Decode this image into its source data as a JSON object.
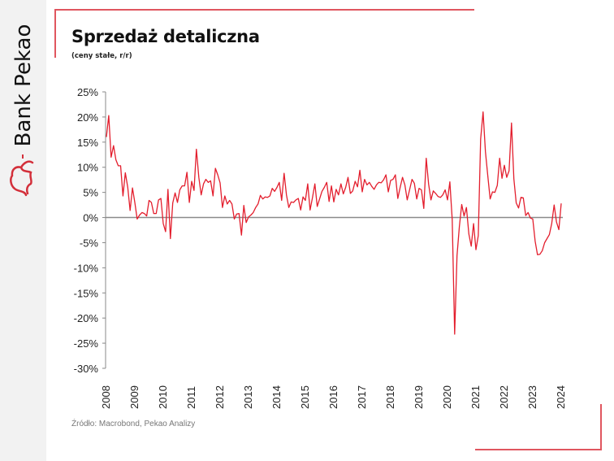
{
  "brand": {
    "name": "Bank Pekao",
    "accent": "#d32f3a"
  },
  "header": {
    "title": "Sprzedaż detaliczna",
    "subtitle": "(ceny stałe, r/r)"
  },
  "footer": {
    "source": "Źródło: Macrobond, Pekao Analizy"
  },
  "chart_data": {
    "type": "line",
    "title": "Sprzedaż detaliczna",
    "subtitle": "(ceny stałe, r/r)",
    "xlabel": "",
    "ylabel": "",
    "ylim": [
      -30,
      25
    ],
    "yticks": [
      "25%",
      "20%",
      "15%",
      "10%",
      "5%",
      "0%",
      "-5%",
      "-10%",
      "-15%",
      "-20%",
      "-25%",
      "-30%"
    ],
    "ytick_values": [
      25,
      20,
      15,
      10,
      5,
      0,
      -5,
      -10,
      -15,
      -20,
      -25,
      -30
    ],
    "xticks": [
      "2008",
      "2009",
      "2010",
      "2011",
      "2012",
      "2013",
      "2014",
      "2015",
      "2016",
      "2017",
      "2018",
      "2019",
      "2020",
      "2021",
      "2022",
      "2023",
      "2024"
    ],
    "x_start": "2008-01",
    "x_frequency": "monthly",
    "grid": false,
    "zero_line": true,
    "series": [
      {
        "color": "#e31e2d",
        "values": [
          16,
          20.3,
          12,
          14.3,
          11.5,
          10.3,
          10.3,
          4.3,
          8.9,
          6,
          1.4,
          5.9,
          3,
          -0.3,
          0.5,
          1,
          0.8,
          0.3,
          3.4,
          3,
          0.8,
          0.8,
          3.5,
          3.8,
          -1.2,
          -2.8,
          5.6,
          -4.2,
          2.9,
          4.9,
          3,
          5.5,
          6.3,
          6.3,
          9,
          3,
          7.2,
          5.4,
          13.6,
          8,
          4.5,
          6.7,
          7.6,
          7,
          7.3,
          4.3,
          9.8,
          8.5,
          6.9,
          2,
          4.3,
          2.7,
          3.4,
          2.7,
          -0.3,
          0.7,
          0.8,
          -3.5,
          2.4,
          -1,
          0.1,
          0.5,
          1,
          2,
          2.7,
          4.4,
          3.7,
          4.1,
          4,
          4.3,
          5.8,
          5.2,
          6,
          7,
          3.4,
          8.8,
          4.5,
          2,
          3.1,
          3,
          3.5,
          3.8,
          1.5,
          4.1,
          3.4,
          6.7,
          1.5,
          4,
          6.7,
          2.2,
          3.7,
          5.2,
          6,
          7,
          3.2,
          6.3,
          3.1,
          5.6,
          4.5,
          6.7,
          4.7,
          6,
          8,
          4.8,
          5.3,
          7.2,
          6.1,
          9.4,
          5.1,
          7.6,
          6.5,
          7,
          6.2,
          5.6,
          6.5,
          7,
          6.9,
          7.5,
          8.5,
          5.1,
          7.4,
          7.6,
          8.5,
          3.8,
          6,
          8,
          6.5,
          3.5,
          5.5,
          7.6,
          6.8,
          3.7,
          5.8,
          5.5,
          1.8,
          11.8,
          6.7,
          3.5,
          5.3,
          4.8,
          4.2,
          4,
          4.5,
          5.5,
          3.5,
          7.1,
          -0.4,
          -23.2,
          -7.6,
          -1.8,
          2.6,
          0.3,
          2,
          -3.3,
          -5.7,
          -1.2,
          -6.4,
          -3.6,
          15.6,
          21,
          13.1,
          8.3,
          3.7,
          5.1,
          5,
          6.4,
          11.8,
          7.8,
          10.4,
          8,
          9.3,
          18.8,
          7.7,
          2.9,
          1.9,
          4,
          3.9,
          0.4,
          1,
          -0.1,
          -0.3,
          -4.7,
          -7.4,
          -7.3,
          -6.6,
          -5,
          -4.2,
          -3.4,
          -1.2,
          2.5,
          -0.9,
          -2.4,
          2.8
        ]
      }
    ]
  }
}
